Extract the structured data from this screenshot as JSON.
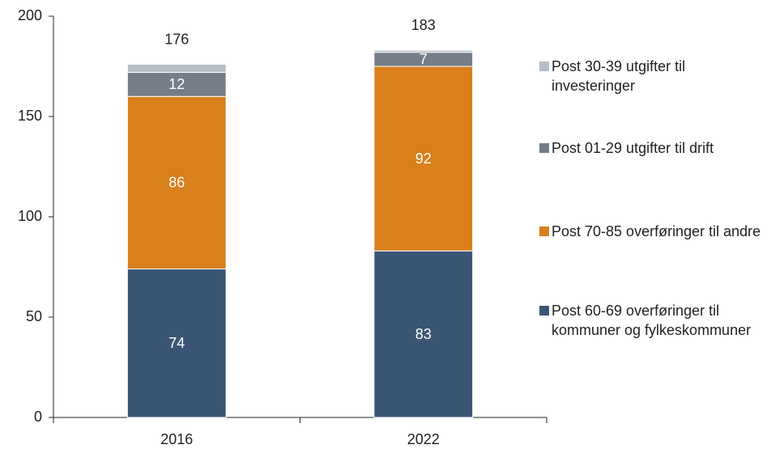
{
  "chart_data": {
    "type": "stacked_bar",
    "categories": [
      "2016",
      "2022"
    ],
    "series": [
      {
        "name": "Post 60-69 overføringer til kommuner og fylkeskommuner",
        "color": "#3b5675",
        "values": [
          74,
          83
        ]
      },
      {
        "name": "Post 70-85 overføringer til andre",
        "color": "#d97f1c",
        "values": [
          86,
          92
        ]
      },
      {
        "name": "Post 01-29 utgifter til drift",
        "color": "#757d87",
        "values": [
          12,
          7
        ]
      },
      {
        "name": "Post 30-39 utgifter til investeringer",
        "color": "#b8bec6",
        "values": [
          4,
          1
        ]
      }
    ],
    "totals": [
      176,
      183
    ],
    "ylim": [
      0,
      200
    ],
    "yticks": [
      0,
      50,
      100,
      150,
      200
    ]
  }
}
